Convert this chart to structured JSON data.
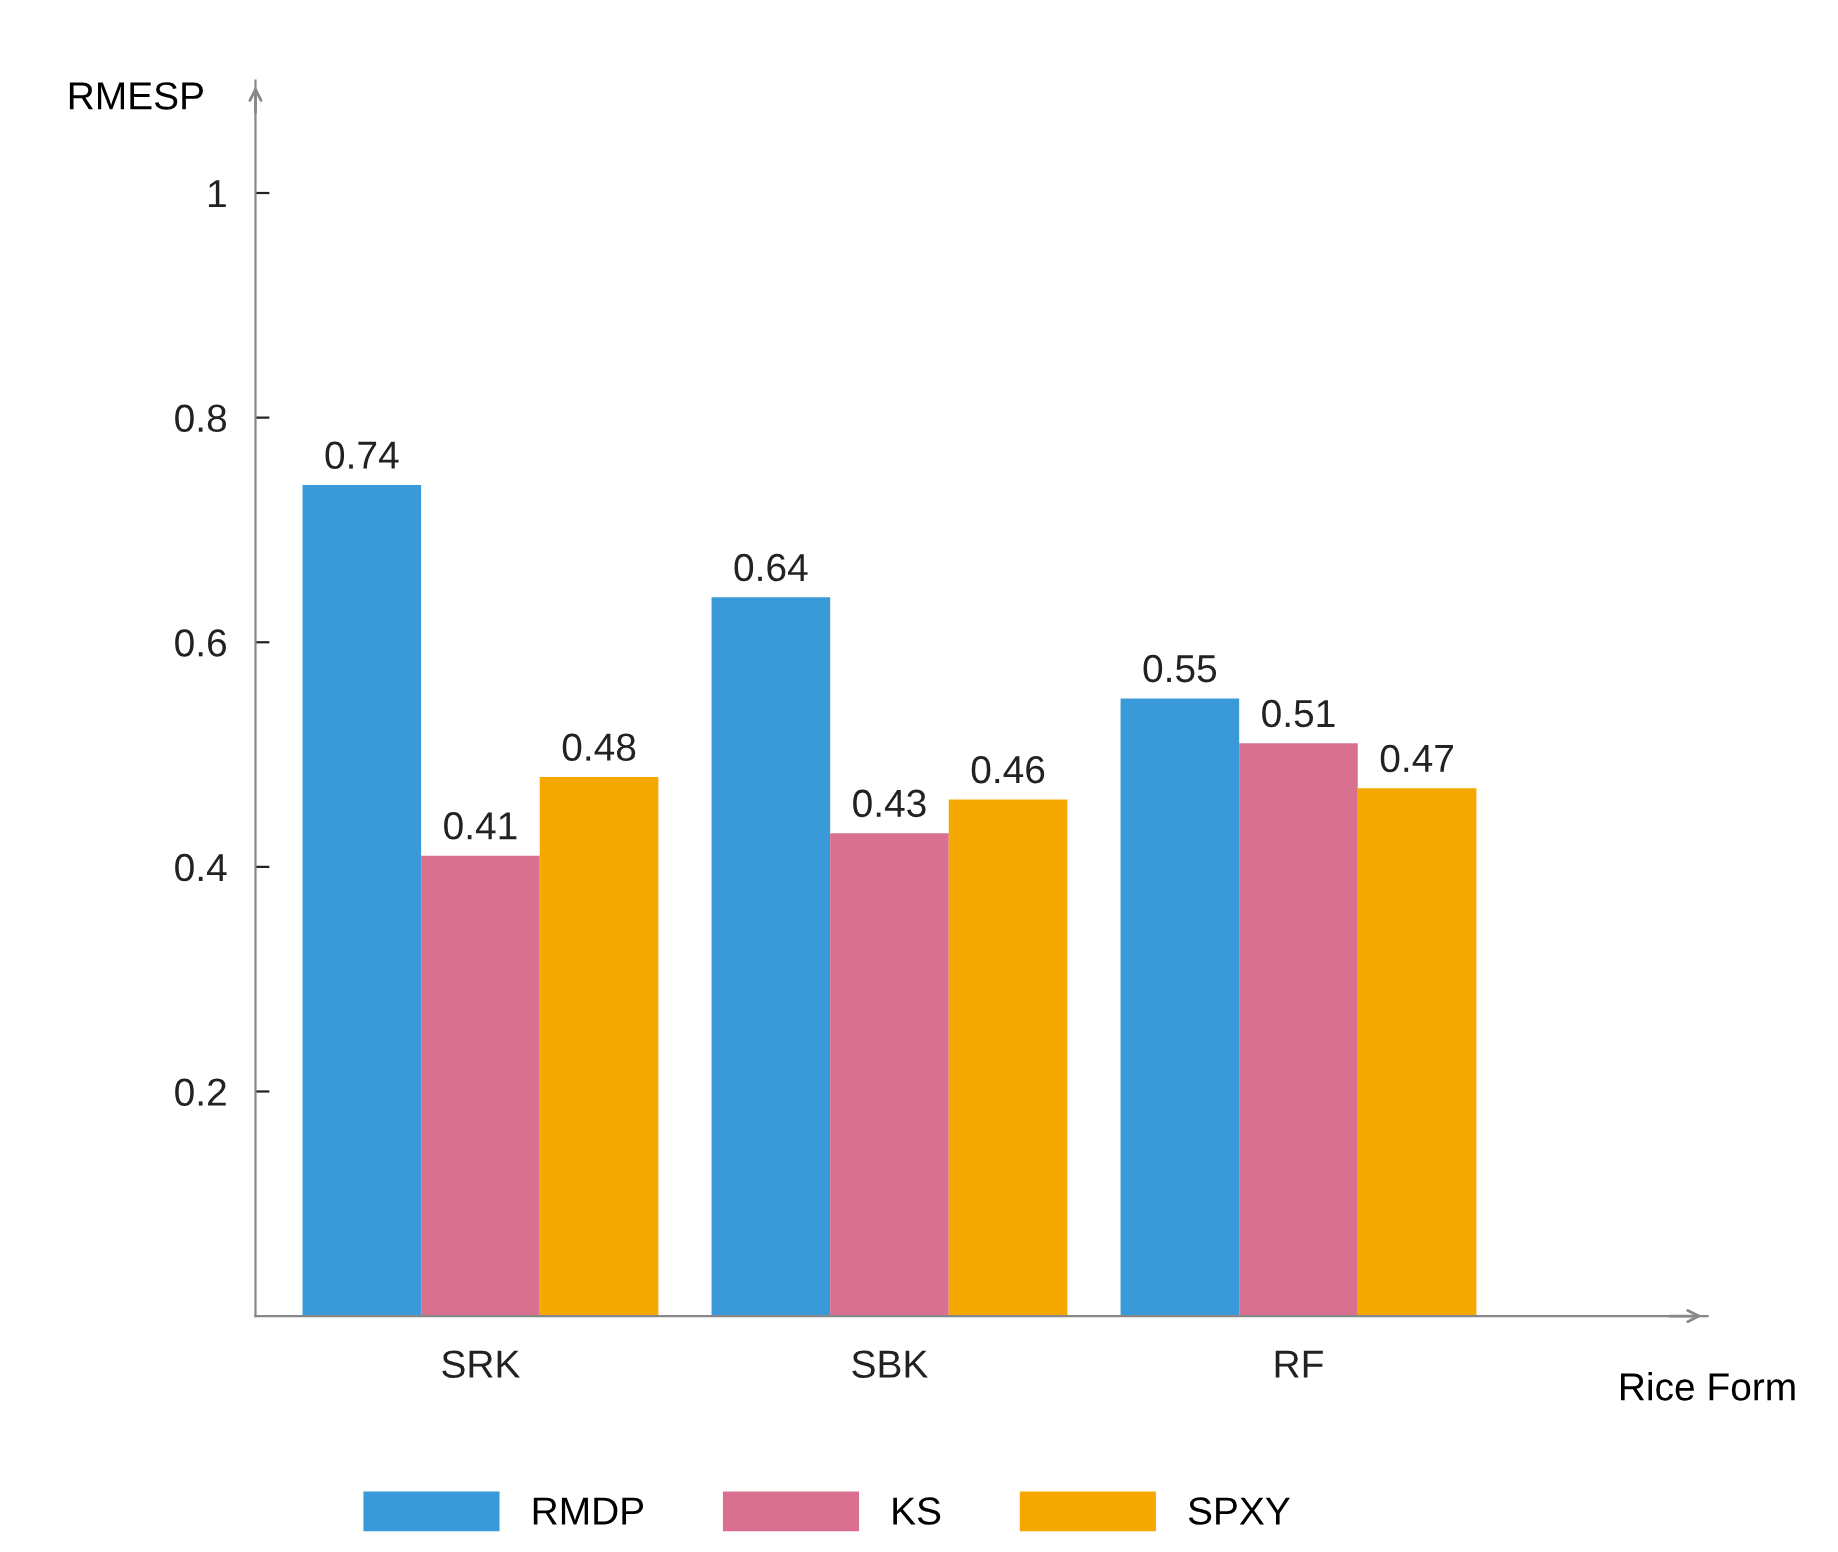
{
  "chart_data": {
    "type": "bar",
    "ylabel": "RMESP",
    "xlabel": "Rice Form",
    "categories": [
      "SRK",
      "SBK",
      "RF"
    ],
    "series": [
      {
        "name": "RMDP",
        "color": "#3a9ad9",
        "values": [
          0.74,
          0.64,
          0.55
        ]
      },
      {
        "name": "KS",
        "color": "#d9708f",
        "values": [
          0.41,
          0.43,
          0.51
        ]
      },
      {
        "name": "SPXY",
        "color": "#f5a800",
        "values": [
          0.48,
          0.46,
          0.47
        ]
      }
    ],
    "ylim": [
      0,
      1.1
    ],
    "yticks": [
      0.2,
      0.4,
      0.6,
      0.8,
      1
    ],
    "data_labels": true,
    "legend": "bottom",
    "grid": false
  }
}
